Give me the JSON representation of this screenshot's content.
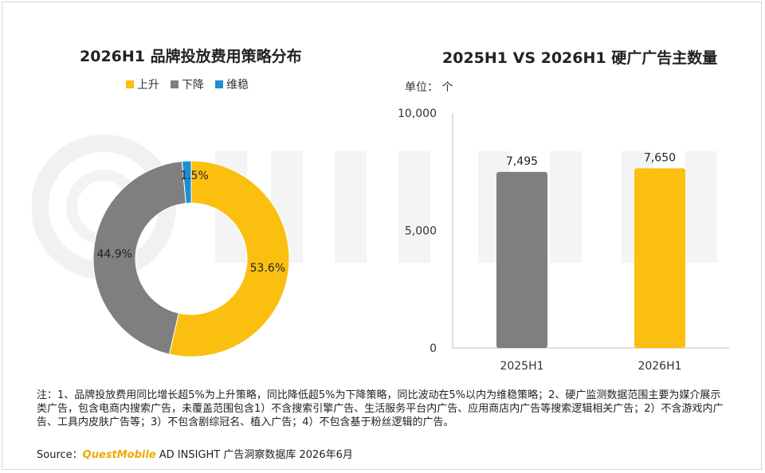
{
  "chart_data": [
    {
      "type": "pie",
      "title": "2026H1 品牌投放费用策略分布",
      "donut": true,
      "legend_position": "top",
      "series": [
        {
          "name": "上升",
          "value": 53.6,
          "label": "53.6%",
          "color": "#fbbf10"
        },
        {
          "name": "下降",
          "value": 44.9,
          "label": "44.9%",
          "color": "#7f7f7f"
        },
        {
          "name": "维稳",
          "value": 1.5,
          "label": "1.5%",
          "color": "#1b8fd0"
        }
      ]
    },
    {
      "type": "bar",
      "title": "2025H1 VS 2026H1 硬广广告主数量",
      "unit_label": "单位： 个",
      "categories": [
        "2025H1",
        "2026H1"
      ],
      "values": [
        7495,
        7650
      ],
      "value_labels": [
        "7,495",
        "7,650"
      ],
      "ylim": [
        0,
        10000
      ],
      "yticks": [
        0,
        5000,
        10000
      ],
      "ytick_labels": [
        "0",
        "5,000",
        "10,000"
      ],
      "colors": [
        "#7f7f7f",
        "#fbbf10"
      ],
      "grid": false
    }
  ],
  "footer": {
    "note": "注：1、品牌投放费用同比增长超5%为上升策略，同比降低超5%为下降策略，同比波动在5%以内为维稳策略；2、硬广监测数据范围主要为媒介展示类广告，包含电商内搜索广告，未覆盖范围包含1）不含搜索引擎广告、生活服务平台内广告、应用商店内广告等搜索逻辑相关广告；2）不含游戏内广告、工具内皮肤广告等；3）不包含剧综冠名、植入广告；4）不包含基于粉丝逻辑的广告。",
    "source_prefix": "Source：",
    "source_brand": "QuestMobile",
    "source_suffix": " AD INSIGHT 广告洞察数据库 2026年6月"
  }
}
